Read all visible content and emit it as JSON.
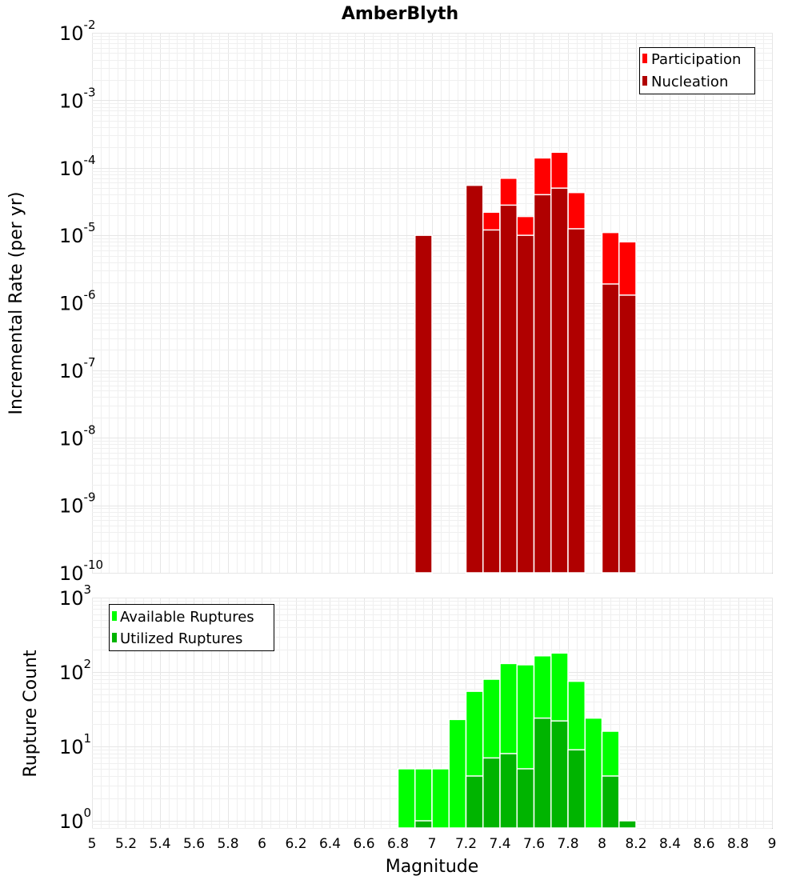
{
  "chart_data": [
    {
      "type": "bar",
      "title": "AmberBlyth",
      "xlabel": "",
      "ylabel": "Incremental Rate (per yr)",
      "xlim": [
        5,
        9
      ],
      "ylim": [
        1e-10,
        0.01
      ],
      "yscale": "log",
      "ytick_exponents": [
        "-10",
        "-9",
        "-8",
        "-7",
        "-6",
        "-5",
        "-4",
        "-3",
        "-2"
      ],
      "grid": true,
      "legend_position": "top-right",
      "bin_width": 0.1,
      "x": [
        6.95,
        7.25,
        7.35,
        7.45,
        7.55,
        7.65,
        7.75,
        7.85,
        8.05,
        8.15
      ],
      "series": [
        {
          "name": "Participation",
          "color": "#ff0000",
          "values": [
            1e-05,
            5.5e-05,
            2.2e-05,
            7e-05,
            1.9e-05,
            0.00014,
            0.00017,
            4.3e-05,
            1.1e-05,
            8e-06
          ]
        },
        {
          "name": "Nucleation",
          "color": "#b00000",
          "values": [
            1e-05,
            5.5e-05,
            1.2e-05,
            2.8e-05,
            1e-05,
            4e-05,
            5e-05,
            1.25e-05,
            1.9e-06,
            1.3e-06
          ]
        }
      ]
    },
    {
      "type": "bar",
      "title": "",
      "xlabel": "Magnitude",
      "ylabel": "Rupture Count",
      "xlim": [
        5,
        9
      ],
      "ylim": [
        0.8,
        1000
      ],
      "yscale": "log",
      "ytick_exponents": [
        "0",
        "1",
        "2",
        "3"
      ],
      "xticks": [
        "5",
        "5.2",
        "5.4",
        "5.6",
        "5.8",
        "6",
        "6.2",
        "6.4",
        "6.6",
        "6.8",
        "7",
        "7.2",
        "7.4",
        "7.6",
        "7.8",
        "8",
        "8.2",
        "8.4",
        "8.6",
        "8.8",
        "9"
      ],
      "grid": true,
      "legend_position": "top-left",
      "bin_width": 0.1,
      "x": [
        6.85,
        6.95,
        7.05,
        7.15,
        7.25,
        7.35,
        7.45,
        7.55,
        7.65,
        7.75,
        7.85,
        7.95,
        8.05,
        8.15
      ],
      "series": [
        {
          "name": "Available Ruptures",
          "color": "#00ff00",
          "values": [
            5,
            5,
            5,
            23,
            55,
            80,
            130,
            125,
            165,
            180,
            75,
            24,
            16,
            1
          ]
        },
        {
          "name": "Utilized Ruptures",
          "color": "#00b400",
          "values": [
            0,
            1,
            0,
            0,
            4,
            7,
            8,
            5,
            24,
            22,
            9,
            0,
            4,
            1
          ]
        }
      ]
    }
  ]
}
